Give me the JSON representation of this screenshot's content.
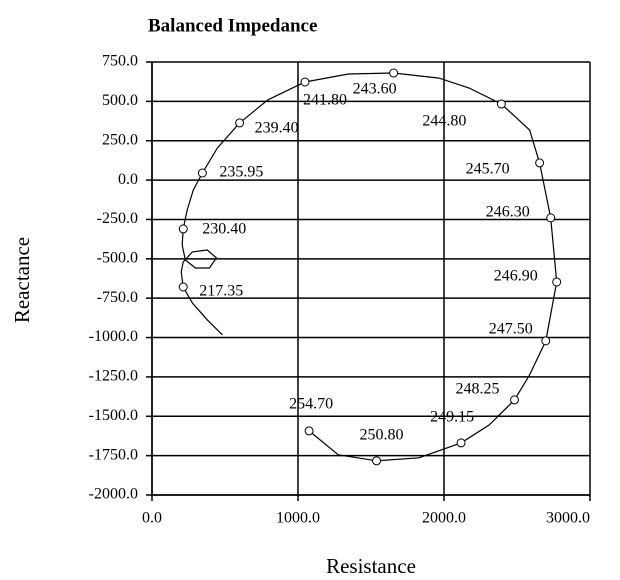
{
  "chart_data": {
    "type": "line",
    "title": "Balanced Impedance",
    "xlabel": "Resistance",
    "ylabel": "Reactance",
    "xlim": [
      0,
      3000
    ],
    "ylim": [
      -2000,
      750
    ],
    "xticks": [
      {
        "value": 0,
        "label": "0.0"
      },
      {
        "value": 1000,
        "label": "1000.0"
      },
      {
        "value": 2000,
        "label": "2000.0"
      },
      {
        "value": 3000,
        "label": "3000.0"
      }
    ],
    "yticks": [
      {
        "value": 750,
        "label": "750.0"
      },
      {
        "value": 500,
        "label": "500.0"
      },
      {
        "value": 250,
        "label": "250.0"
      },
      {
        "value": 0,
        "label": "0.0"
      },
      {
        "value": -250,
        "label": "-250.0"
      },
      {
        "value": -500,
        "label": "-500.0"
      },
      {
        "value": -750,
        "label": "-750.0"
      },
      {
        "value": -1000,
        "label": "-1000.0"
      },
      {
        "value": -1250,
        "label": "-1250.0"
      },
      {
        "value": -1500,
        "label": "-1500.0"
      },
      {
        "value": -1750,
        "label": "-1750.0"
      },
      {
        "value": -2000,
        "label": "-2000.0"
      }
    ],
    "grid": true,
    "series": [
      {
        "color": "#000000",
        "x": [
          483,
          379,
          276,
          214,
          200,
          214,
          276,
          379,
          441,
          393,
          297,
          228,
          207,
          214,
          241,
          283,
          345,
          448,
          600,
          793,
          1048,
          1345,
          1655,
          1966,
          2172,
          2393,
          2586,
          2655,
          2731,
          2772,
          2697,
          2586,
          2483,
          2310,
          2117,
          1828,
          1538,
          1276,
          1076
        ],
        "values": [
          -983,
          -888,
          -780,
          -679,
          -583,
          -520,
          -456,
          -444,
          -494,
          -558,
          -558,
          -507,
          -412,
          -310,
          -190,
          -63,
          45,
          204,
          363,
          509,
          623,
          674,
          680,
          648,
          585,
          483,
          318,
          109,
          -240,
          -647,
          -1021,
          -1237,
          -1396,
          -1555,
          -1669,
          -1764,
          -1783,
          -1745,
          -1593
        ]
      },
      {
        "type": "scatter",
        "color": "#000000",
        "x": [
          214,
          214,
          345,
          600,
          1048,
          1655,
          2393,
          2655,
          2731,
          2772,
          2697,
          2483,
          2117,
          1538,
          1076
        ],
        "values": [
          -679,
          -310,
          45,
          363,
          623,
          680,
          483,
          109,
          -240,
          -647,
          -1021,
          -1396,
          -1669,
          -1783,
          -1593
        ],
        "labels": [
          "217.35",
          "230.40",
          "235.95",
          "239.40",
          "241.80",
          "243.60",
          "244.80",
          "245.70",
          "246.30",
          "246.90",
          "247.50",
          "248.25",
          "249.15",
          "250.80",
          "254.70"
        ]
      }
    ]
  }
}
